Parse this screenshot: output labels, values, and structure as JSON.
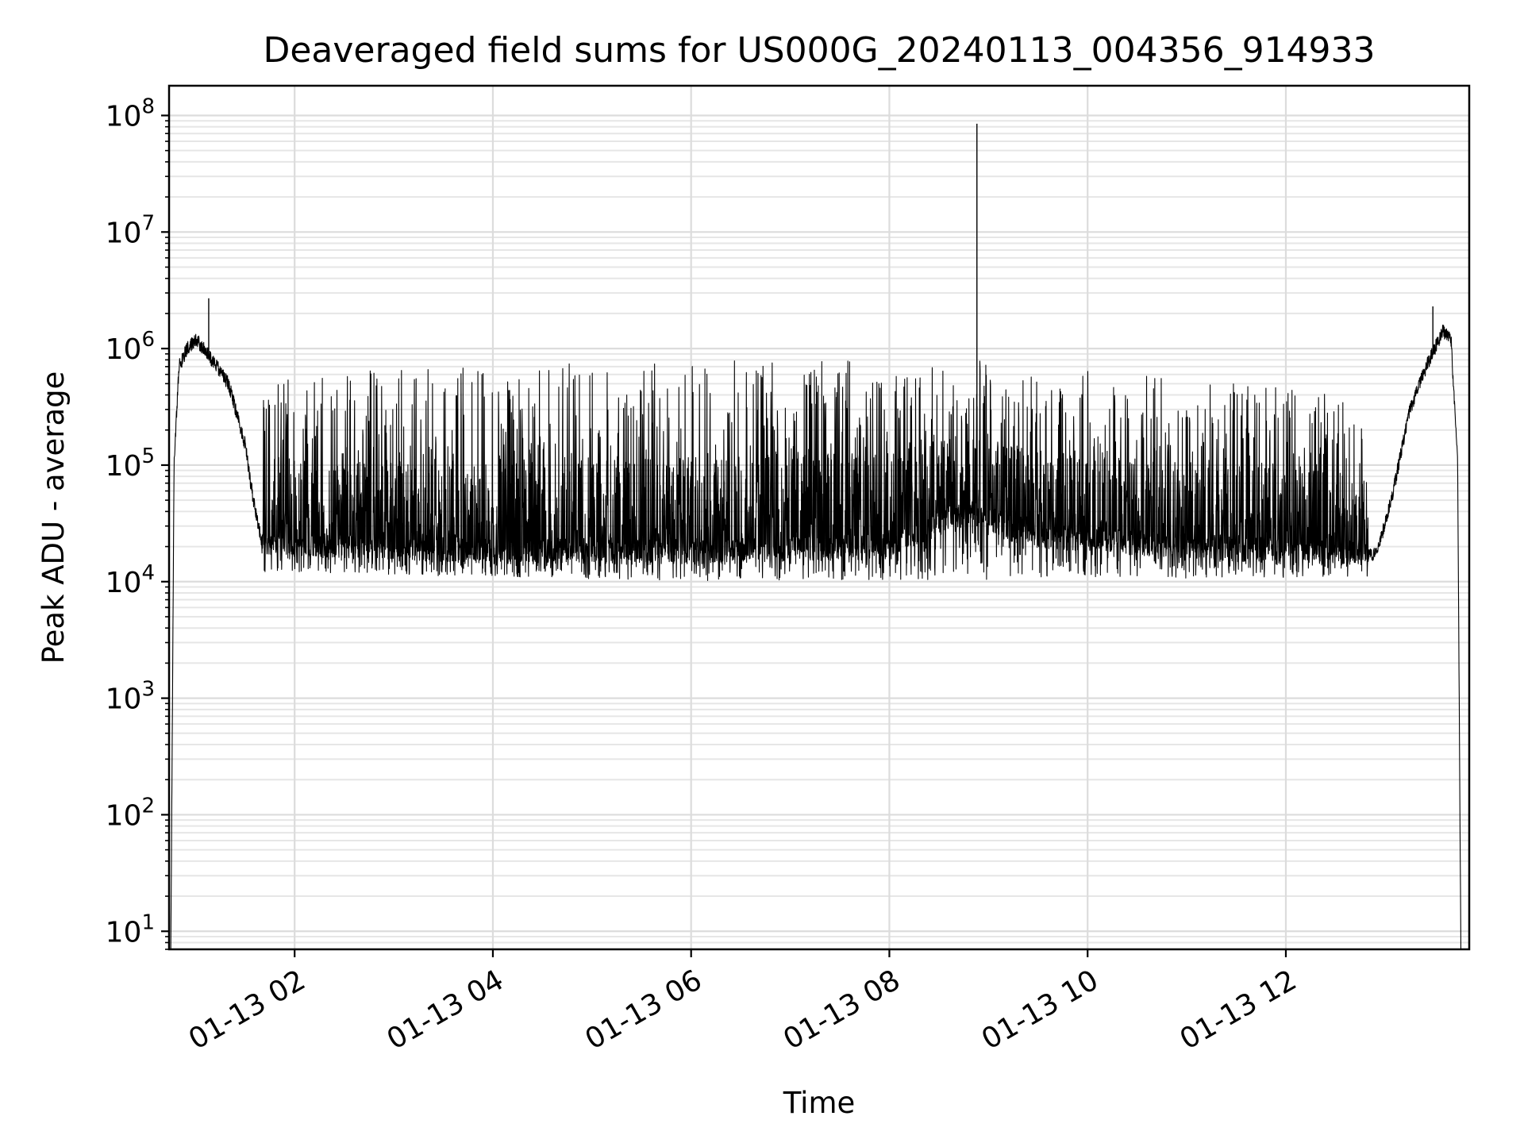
{
  "chart_data": {
    "type": "line",
    "title": "Deaveraged field sums for US000G_20240113_004356_914933",
    "xlabel": "Time",
    "ylabel": "Peak ADU - average",
    "yscale": "log",
    "ylim": [
      7,
      180000000
    ],
    "xlim": [
      "2024-01-13 00:44",
      "2024-01-13 13:51"
    ],
    "grid": true,
    "line_color": "#000000",
    "x_ticks": [
      {
        "value": "2024-01-13 02:00",
        "label": "01-13 02"
      },
      {
        "value": "2024-01-13 04:00",
        "label": "01-13 04"
      },
      {
        "value": "2024-01-13 06:00",
        "label": "01-13 06"
      },
      {
        "value": "2024-01-13 08:00",
        "label": "01-13 08"
      },
      {
        "value": "2024-01-13 10:00",
        "label": "01-13 10"
      },
      {
        "value": "2024-01-13 12:00",
        "label": "01-13 12"
      }
    ],
    "y_ticks": [
      {
        "value": 10,
        "base": "10",
        "exp": "1"
      },
      {
        "value": 100,
        "base": "10",
        "exp": "2"
      },
      {
        "value": 1000,
        "base": "10",
        "exp": "3"
      },
      {
        "value": 10000,
        "base": "10",
        "exp": "4"
      },
      {
        "value": 100000,
        "base": "10",
        "exp": "5"
      },
      {
        "value": 1000000,
        "base": "10",
        "exp": "6"
      },
      {
        "value": 10000000,
        "base": "10",
        "exp": "7"
      },
      {
        "value": 100000000,
        "base": "10",
        "exp": "8"
      }
    ],
    "series": [
      {
        "style": "dense noisy trace",
        "points": [
          {
            "x": "2024-01-13 00:45",
            "y": 5
          },
          {
            "x": "2024-01-13 00:47",
            "y": 100000
          },
          {
            "x": "2024-01-13 00:50",
            "y": 700000
          },
          {
            "x": "2024-01-13 00:55",
            "y": 1000000
          },
          {
            "x": "2024-01-13 01:00",
            "y": 1200000
          },
          {
            "x": "2024-01-13 01:05",
            "y": 1000000
          },
          {
            "x": "2024-01-13 01:10",
            "y": 800000
          },
          {
            "x": "2024-01-13 01:20",
            "y": 500000
          },
          {
            "x": "2024-01-13 01:30",
            "y": 150000
          },
          {
            "x": "2024-01-13 01:35",
            "y": 50000
          },
          {
            "x": "2024-01-13 01:40",
            "y": 22000
          },
          {
            "x": "2024-01-13 02:30",
            "y": 20000
          },
          {
            "x": "2024-01-13 04:00",
            "y": 18000
          },
          {
            "x": "2024-01-13 06:00",
            "y": 18000
          },
          {
            "x": "2024-01-13 08:00",
            "y": 20000
          },
          {
            "x": "2024-01-13 08:45",
            "y": 40000
          },
          {
            "x": "2024-01-13 09:30",
            "y": 25000
          },
          {
            "x": "2024-01-13 11:00",
            "y": 20000
          },
          {
            "x": "2024-01-13 12:55",
            "y": 17000
          },
          {
            "x": "2024-01-13 13:05",
            "y": 60000
          },
          {
            "x": "2024-01-13 13:15",
            "y": 300000
          },
          {
            "x": "2024-01-13 13:25",
            "y": 700000
          },
          {
            "x": "2024-01-13 13:35",
            "y": 1400000
          },
          {
            "x": "2024-01-13 13:40",
            "y": 1200000
          },
          {
            "x": "2024-01-13 13:44",
            "y": 100000
          },
          {
            "x": "2024-01-13 13:46",
            "y": 5
          }
        ],
        "fluctuation_upper": [
          {
            "x": "2024-01-13 01:40",
            "y": 600000
          },
          {
            "x": "2024-01-13 05:30",
            "y": 800000
          },
          {
            "x": "2024-01-13 08:50",
            "y": 800000
          },
          {
            "x": "2024-01-13 12:50",
            "y": 400000
          }
        ],
        "fluctuation_lower": [
          {
            "x": "2024-01-13 01:40",
            "y": 12000
          },
          {
            "x": "2024-01-13 06:30",
            "y": 10000
          },
          {
            "x": "2024-01-13 12:55",
            "y": 11000
          }
        ],
        "spikes": [
          {
            "x": "2024-01-13 01:08",
            "y": 2700000
          },
          {
            "x": "2024-01-13 08:53",
            "y": 85000000
          },
          {
            "x": "2024-01-13 13:29",
            "y": 2300000
          }
        ]
      }
    ]
  }
}
